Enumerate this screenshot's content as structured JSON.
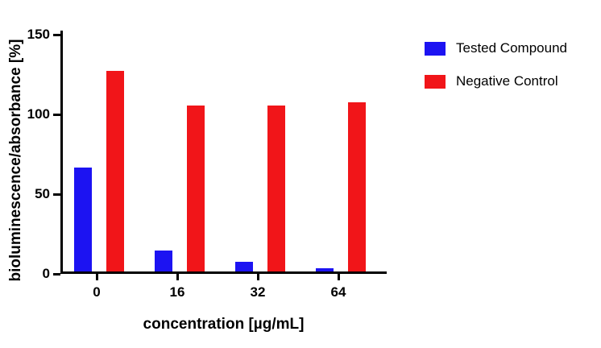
{
  "chart_data": {
    "type": "bar",
    "categories": [
      "0",
      "16",
      "32",
      "64"
    ],
    "series": [
      {
        "name": "Tested Compound",
        "color": "#1c13f2",
        "values": [
          65,
          13,
          6,
          2
        ]
      },
      {
        "name": "Negative Control",
        "color": "#f11519",
        "values": [
          126,
          104,
          104,
          106
        ]
      }
    ],
    "title": "",
    "xlabel": "concentration [µg/mL]",
    "ylabel": "bioluminescence/absorbance [%]",
    "ylim": [
      0,
      150
    ],
    "yticks": [
      0,
      50,
      100,
      150
    ],
    "grid": false,
    "legend_position": "top-right",
    "axis_color": "#000000",
    "background_color": "#ffffff"
  }
}
